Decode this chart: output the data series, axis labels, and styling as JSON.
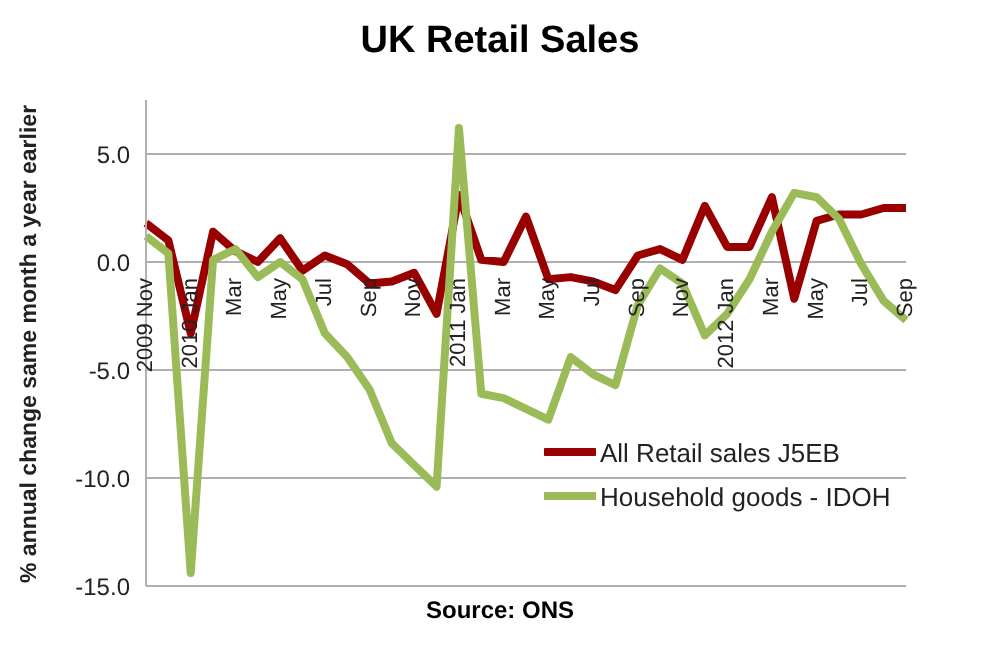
{
  "chart_data": {
    "type": "line",
    "title": "UK Retail Sales",
    "ylabel": "% annual change same month a year earlier",
    "annotations": [
      "Source: ONS"
    ],
    "categories": [
      "2009 Nov",
      null,
      "2010 Jan",
      null,
      "Mar",
      null,
      "May",
      null,
      "Jul",
      null,
      "Sep",
      null,
      "Nov",
      null,
      "2011 Jan",
      null,
      "Mar",
      null,
      "May",
      null,
      "Jul",
      null,
      "Sep",
      null,
      "Nov",
      null,
      "2012 Jan",
      null,
      "Mar",
      null,
      "May",
      null,
      "Jul",
      null,
      "Sep"
    ],
    "series": [
      {
        "name": "All Retail sales J5EB",
        "color": "#990000",
        "values": [
          1.8,
          1.0,
          -3.3,
          1.4,
          0.5,
          0.0,
          1.1,
          -0.4,
          0.3,
          -0.1,
          -1.0,
          -0.9,
          -0.5,
          -2.4,
          3.1,
          0.1,
          0.0,
          2.1,
          -0.8,
          -0.7,
          -0.9,
          -1.3,
          0.3,
          0.6,
          0.1,
          2.6,
          0.7,
          0.7,
          3.0,
          -1.7,
          1.9,
          2.2,
          2.2,
          2.5,
          2.5
        ]
      },
      {
        "name": "Household goods - IDOH",
        "color": "#9bbb59",
        "values": [
          1.2,
          0.4,
          -14.4,
          0.1,
          0.6,
          -0.7,
          0.0,
          -0.8,
          -3.3,
          -4.4,
          -5.9,
          -8.4,
          -9.4,
          -10.4,
          6.2,
          -6.1,
          -6.3,
          -6.8,
          -7.3,
          -4.4,
          -5.2,
          -5.7,
          -2.0,
          -0.3,
          -1.0,
          -3.4,
          -2.4,
          -0.8,
          1.4,
          3.2,
          3.0,
          2.0,
          -0.1,
          -1.8,
          -2.7
        ]
      }
    ],
    "ylim": [
      -15,
      7.5
    ],
    "yticks": [
      {
        "value": -15,
        "label": "-15.0"
      },
      {
        "value": -10,
        "label": "-10.0"
      },
      {
        "value": -5,
        "label": "-5.0"
      },
      {
        "value": 0,
        "label": "0.0"
      },
      {
        "value": 5,
        "label": "5.0"
      }
    ],
    "grid": "y",
    "legend": "right",
    "marker": "none",
    "line_style": "solid"
  }
}
